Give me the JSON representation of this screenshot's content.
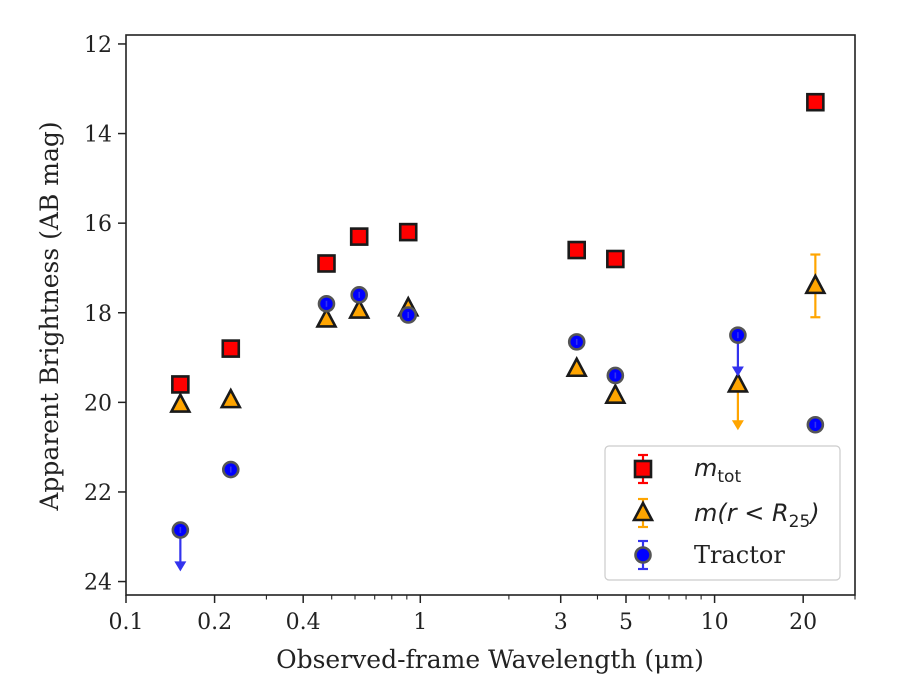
{
  "chart_data": {
    "type": "scatter",
    "xlabel": "Observed-frame Wavelength (μm)",
    "ylabel": "Apparent Brightness (AB mag)",
    "x_scale": "log",
    "xlim": [
      0.1,
      30
    ],
    "ylim": [
      24.3,
      11.8
    ],
    "y_inverted": true,
    "x_ticks": [
      0.1,
      0.2,
      0.4,
      1,
      3,
      5,
      10,
      20
    ],
    "x_tick_labels": [
      "0.1",
      "0.2",
      "0.4",
      "1",
      "3",
      "5",
      "10",
      "20"
    ],
    "y_ticks": [
      12,
      14,
      16,
      18,
      20,
      22,
      24
    ],
    "y_tick_labels": [
      "12",
      "14",
      "16",
      "18",
      "20",
      "22",
      "24"
    ],
    "legend_position": "lower right",
    "series": [
      {
        "name": "m_tot",
        "marker": "square",
        "color": "#ff0000",
        "points": [
          {
            "x": 0.153,
            "y": 19.6
          },
          {
            "x": 0.227,
            "y": 18.8
          },
          {
            "x": 0.48,
            "y": 16.9
          },
          {
            "x": 0.62,
            "y": 16.3
          },
          {
            "x": 0.91,
            "y": 16.2
          },
          {
            "x": 3.4,
            "y": 16.6
          },
          {
            "x": 4.6,
            "y": 16.8
          },
          {
            "x": 22.0,
            "y": 13.3
          }
        ]
      },
      {
        "name": "m(r < R25)",
        "marker": "triangle",
        "color": "#ffa500",
        "points": [
          {
            "x": 0.153,
            "y": 20.05
          },
          {
            "x": 0.227,
            "y": 19.95
          },
          {
            "x": 0.48,
            "y": 18.15
          },
          {
            "x": 0.62,
            "y": 17.95
          },
          {
            "x": 0.91,
            "y": 17.9
          },
          {
            "x": 3.4,
            "y": 19.25
          },
          {
            "x": 4.6,
            "y": 19.85
          },
          {
            "x": 12.0,
            "y": 19.6,
            "upper_limit": true,
            "limit_to": 20.6
          },
          {
            "x": 22.0,
            "y": 17.4,
            "err_low": 16.7,
            "err_high": 18.1
          }
        ]
      },
      {
        "name": "Tractor",
        "marker": "circle",
        "color": "#0000ff",
        "points": [
          {
            "x": 0.153,
            "y": 22.85,
            "upper_limit": true,
            "limit_to": 23.75
          },
          {
            "x": 0.227,
            "y": 21.5
          },
          {
            "x": 0.48,
            "y": 17.8
          },
          {
            "x": 0.62,
            "y": 17.6
          },
          {
            "x": 0.91,
            "y": 18.05
          },
          {
            "x": 3.4,
            "y": 18.65
          },
          {
            "x": 4.6,
            "y": 19.4
          },
          {
            "x": 12.0,
            "y": 18.5,
            "upper_limit": true,
            "limit_to": 19.4
          },
          {
            "x": 22.0,
            "y": 20.5
          }
        ]
      }
    ]
  },
  "legend": {
    "m_tot": {
      "main": "m",
      "sub": "tot"
    },
    "m_r": {
      "label": "m(r < R",
      "sub": "25",
      "close": ")"
    },
    "tractor": {
      "label": "Tractor"
    }
  },
  "colors": {
    "square_fill": "#ff0000",
    "triangle_fill": "#ffa500",
    "circle_fill": "#0000ff",
    "edge": "#1a1a1a",
    "errorbar_red": "#ff0000",
    "errorbar_orange": "#ffa500",
    "errorbar_blue": "#3333ee"
  }
}
